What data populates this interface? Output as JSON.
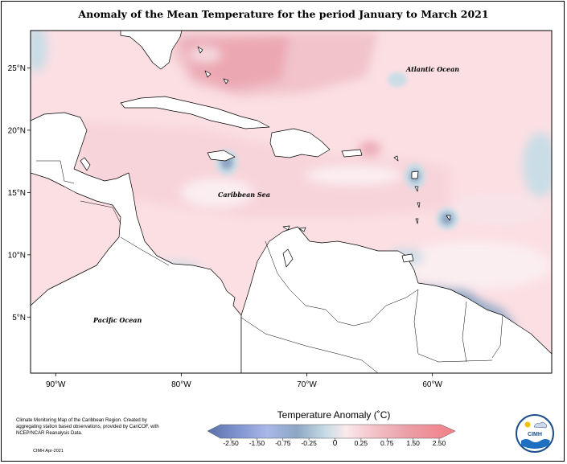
{
  "title": "Anomaly of the Mean Temperature for the period January to March 2021",
  "axes": {
    "lat_labels": [
      "25°N",
      "20°N",
      "15°N",
      "10°N",
      "5°N"
    ],
    "lat_values": [
      25,
      20,
      15,
      10,
      5
    ],
    "lon_labels": [
      "90°W",
      "80°W",
      "70°W",
      "60°W"
    ],
    "lon_values": [
      -90,
      -80,
      -70,
      -60
    ],
    "lon_range": [
      -92,
      -50.5
    ],
    "lat_range": [
      0.5,
      28
    ]
  },
  "labels": {
    "atlantic": "Atlantic Ocean",
    "caribbean": "Caribbean Sea",
    "pacific": "Pacific Ocean"
  },
  "legend": {
    "title": "Temperature Anomaly (˚C)",
    "ticks": [
      "-2.50",
      "-1.50",
      "-0.75",
      "-0.25",
      "0",
      "0.25",
      "0.75",
      "1.50",
      "2.50"
    ],
    "colors": [
      "#5b6fa8",
      "#7f93cf",
      "#a9b7e8",
      "#8ca6c4",
      "#c8dde6",
      "#fbe9ec",
      "#f4c6cc",
      "#eba0a8",
      "#f37f86"
    ]
  },
  "credit": {
    "text": "Climate Monitoring Map of the Caribbean Region. Created by aggregating station based observations, provided by CariCOF, with NCEP/NCAR Reanalysis Data.",
    "date": "CIMH Apr-2021"
  },
  "logo": {
    "text": "CIMH"
  },
  "colors": {
    "background_anomaly": "#fbdfe3",
    "warm_strong": "#f1bcc4",
    "warm_core": "#eda6b0",
    "cool_light": "#c9dde6",
    "cool_mid": "#8fa7c6",
    "cool_strong": "#6f86ad",
    "cool_violet": "#a8b5ee",
    "land": "#ffffff",
    "coast": "#000000"
  }
}
